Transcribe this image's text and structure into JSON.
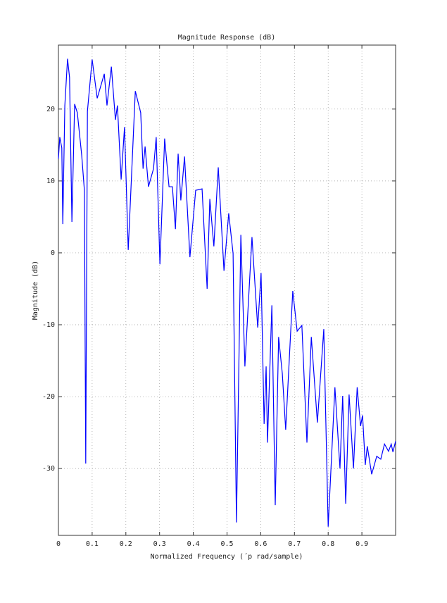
{
  "chart_data": {
    "type": "line",
    "title": "Magnitude Response (dB)",
    "x_label": "Normalized Frequency (´p rad/sample)",
    "y_label": "Magnitude (dB)",
    "xlim": [
      0,
      1
    ],
    "ylim": [
      -39.3,
      28.9
    ],
    "xticks": [
      0,
      0.1,
      0.2,
      0.3,
      0.4,
      0.5,
      0.6,
      0.7,
      0.8,
      0.9
    ],
    "yticks": [
      -30,
      -20,
      -10,
      0,
      10,
      20
    ],
    "grid": true,
    "series": [
      {
        "color": "#0000ff",
        "x": [
          0,
          0.004,
          0.01,
          0.013,
          0.019,
          0.027,
          0.033,
          0.04,
          0.048,
          0.056,
          0.069,
          0.077,
          0.081,
          0.086,
          0.1,
          0.115,
          0.136,
          0.144,
          0.157,
          0.169,
          0.175,
          0.186,
          0.196,
          0.207,
          0.228,
          0.244,
          0.251,
          0.257,
          0.267,
          0.282,
          0.29,
          0.301,
          0.315,
          0.328,
          0.338,
          0.347,
          0.355,
          0.363,
          0.374,
          0.39,
          0.407,
          0.426,
          0.441,
          0.449,
          0.461,
          0.474,
          0.491,
          0.505,
          0.518,
          0.528,
          0.541,
          0.553,
          0.574,
          0.591,
          0.601,
          0.61,
          0.616,
          0.62,
          0.633,
          0.643,
          0.653,
          0.664,
          0.674,
          0.695,
          0.708,
          0.722,
          0.737,
          0.75,
          0.768,
          0.787,
          0.8,
          0.82,
          0.835,
          0.843,
          0.852,
          0.862,
          0.875,
          0.886,
          0.896,
          0.902,
          0.91,
          0.916,
          0.929,
          0.944,
          0.956,
          0.967,
          0.979,
          0.987,
          0.992,
          1.0
        ],
        "values": [
          13.1,
          16.1,
          14.6,
          4.0,
          20.5,
          27.0,
          24.4,
          4.3,
          20.7,
          19.5,
          13.6,
          8.7,
          -29.3,
          19.7,
          26.9,
          21.5,
          24.9,
          20.5,
          25.9,
          18.5,
          20.5,
          10.2,
          17.5,
          0.4,
          22.5,
          19.5,
          11.7,
          14.8,
          9.2,
          11.7,
          16.1,
          -1.6,
          15.9,
          9.2,
          9.2,
          3.3,
          13.8,
          7.3,
          13.4,
          -0.6,
          8.7,
          8.9,
          -5.0,
          7.5,
          0.9,
          11.9,
          -2.5,
          5.5,
          -0.1,
          -37.5,
          2.5,
          -15.8,
          2.2,
          -10.4,
          -2.8,
          -23.8,
          -15.8,
          -26.4,
          -7.3,
          -35.1,
          -11.7,
          -16.8,
          -24.6,
          -5.3,
          -10.9,
          -10.1,
          -26.4,
          -11.7,
          -23.6,
          -10.6,
          -38.1,
          -18.7,
          -30.0,
          -19.9,
          -34.9,
          -19.7,
          -30.0,
          -18.7,
          -24.1,
          -22.6,
          -29.5,
          -26.9,
          -30.8,
          -28.3,
          -28.7,
          -26.6,
          -27.6,
          -26.6,
          -27.7,
          -26.2
        ]
      }
    ]
  }
}
